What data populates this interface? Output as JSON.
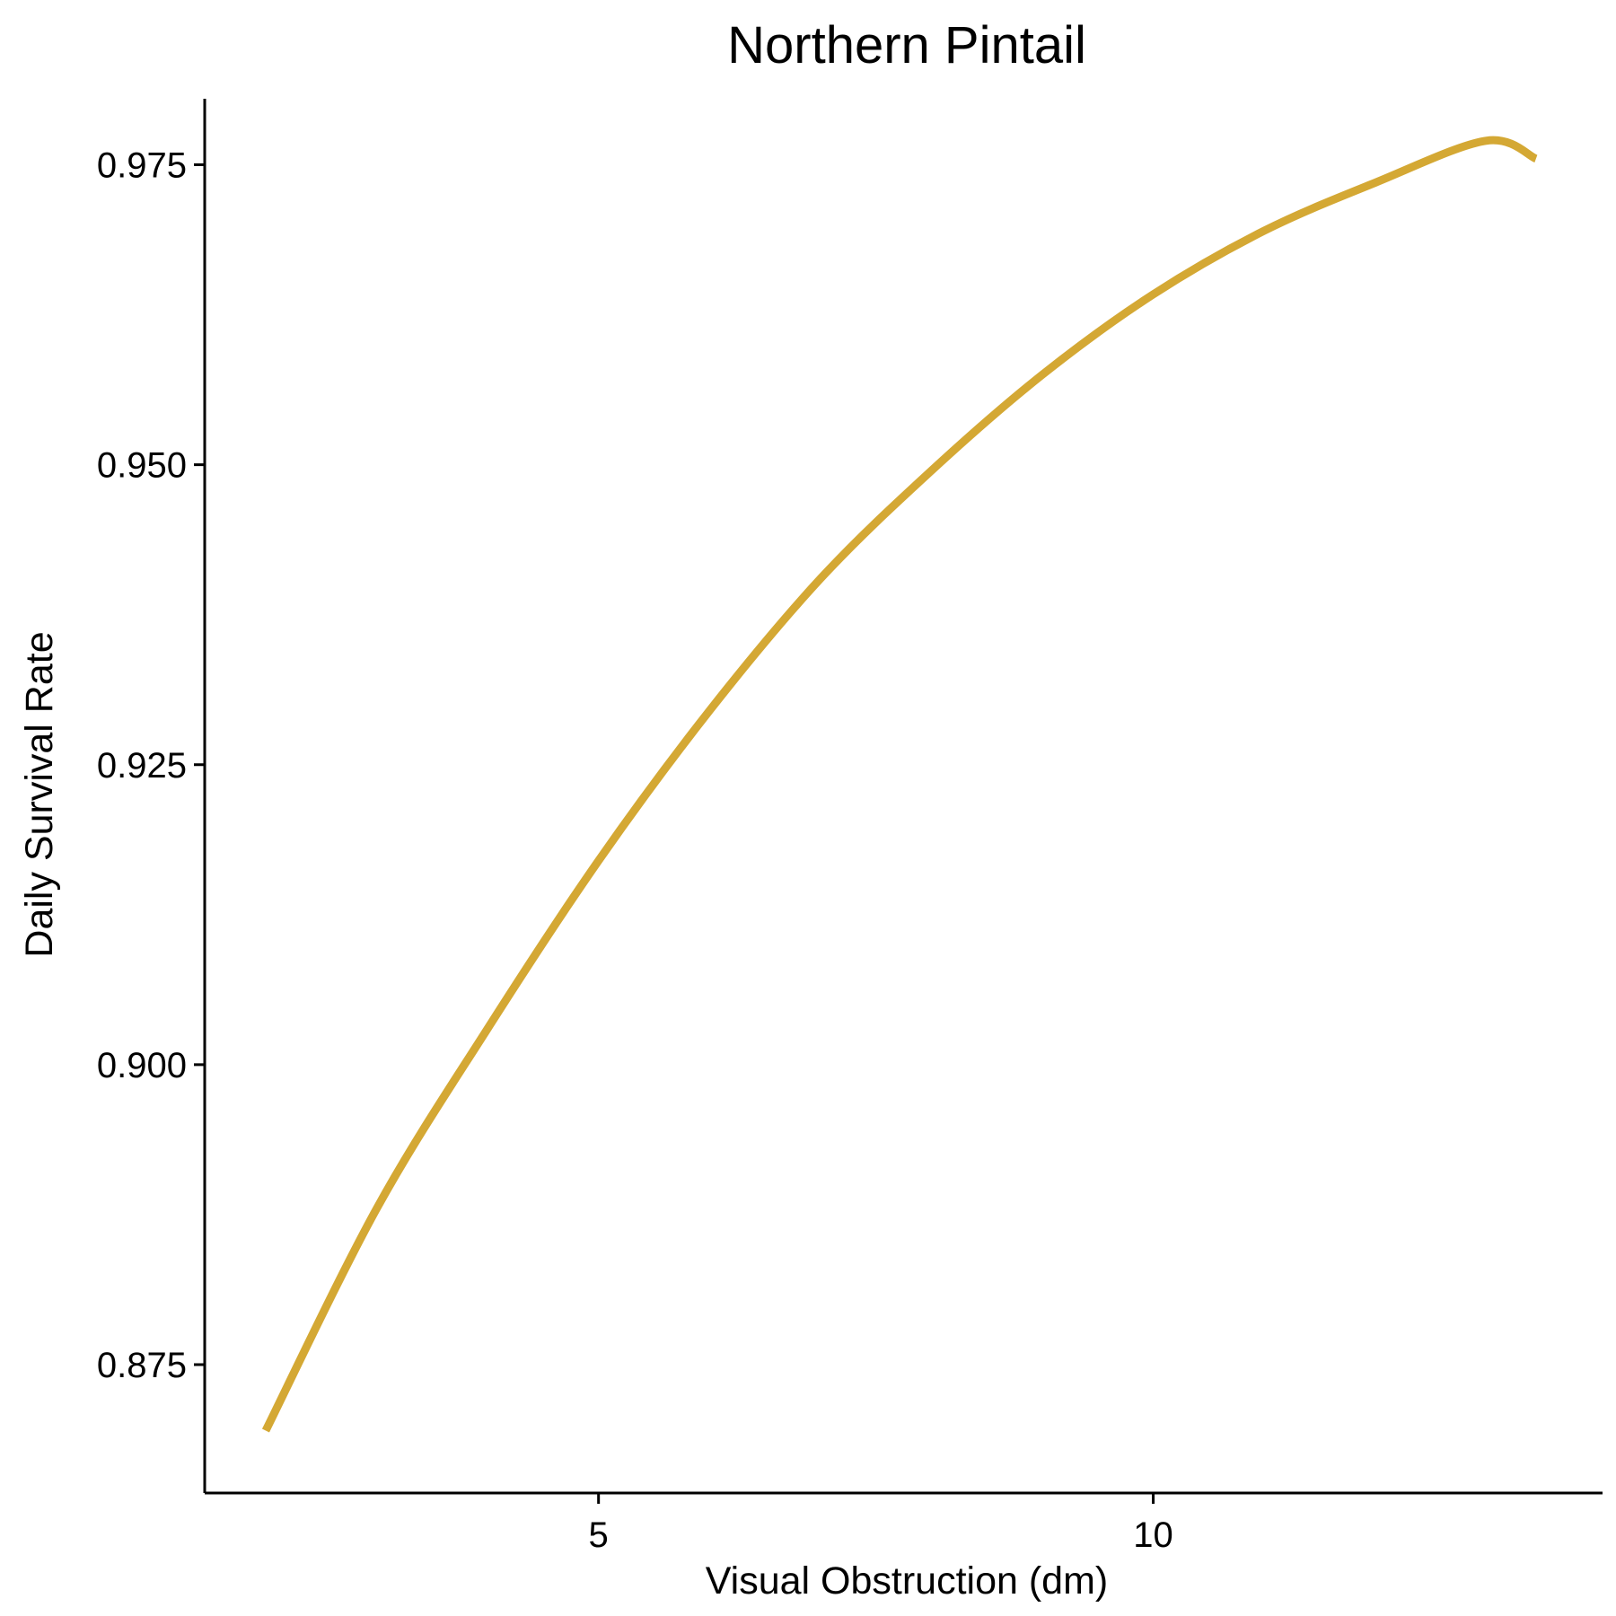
{
  "chart_data": {
    "type": "line",
    "title": "Northern Pintail",
    "xlabel": "Visual Obstruction (dm)",
    "ylabel": "Daily Survival Rate",
    "xlim": [
      1.45,
      14.05
    ],
    "ylim": [
      0.8643,
      0.9805
    ],
    "x_ticks": [
      5,
      10
    ],
    "x_tick_labels": [
      "5",
      "10"
    ],
    "y_ticks": [
      0.875,
      0.9,
      0.925,
      0.95,
      0.975
    ],
    "y_tick_labels": [
      "0.875",
      "0.900",
      "0.925",
      "0.950",
      "0.975"
    ],
    "grid": false,
    "legend": "none",
    "series": [
      {
        "color": "#D4A834",
        "x": [
          2,
          3,
          4,
          5,
          6,
          7,
          8,
          9,
          10,
          11,
          12,
          13,
          13.45
        ],
        "y": [
          0.8695,
          0.888,
          0.903,
          0.917,
          0.9295,
          0.9405,
          0.9495,
          0.9575,
          0.9642,
          0.9695,
          0.9735,
          0.977,
          0.9755
        ]
      }
    ]
  }
}
